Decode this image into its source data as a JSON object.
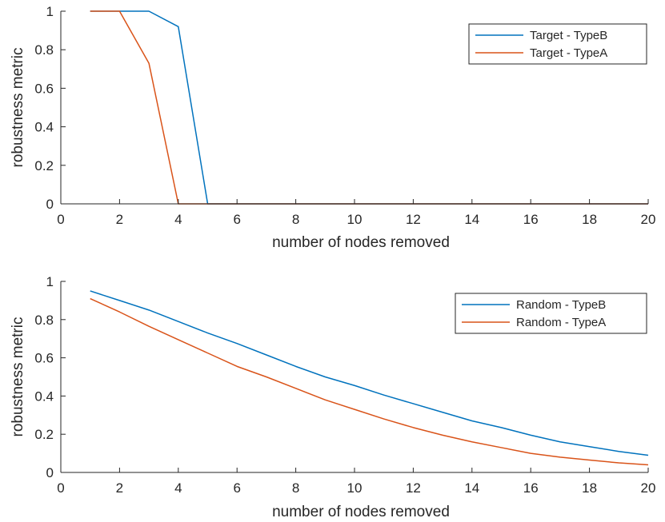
{
  "chart_data": [
    {
      "type": "line",
      "title": "",
      "xlabel": "number of nodes removed",
      "ylabel": "robustness metric",
      "xlim": [
        0,
        20
      ],
      "ylim": [
        0,
        1
      ],
      "xticks": [
        0,
        2,
        4,
        6,
        8,
        10,
        12,
        14,
        16,
        18,
        20
      ],
      "xtick_labels": [
        "0",
        "2",
        "4",
        "6",
        "8",
        "10",
        "12",
        "14",
        "16",
        "18",
        "20"
      ],
      "yticks": [
        0,
        0.2,
        0.4,
        0.6,
        0.8,
        1
      ],
      "ytick_labels": [
        "0",
        "0.2",
        "0.4",
        "0.6",
        "0.8",
        "1"
      ],
      "grid": false,
      "legend_position": "top-right",
      "series": [
        {
          "name": "Target - TypeB",
          "color": "#0072BD",
          "x": [
            1,
            2,
            3,
            4,
            5,
            6,
            7,
            8,
            9,
            10,
            11,
            12,
            13,
            14,
            15,
            16,
            17,
            18,
            19,
            20
          ],
          "y": [
            1,
            1,
            1,
            0.92,
            0,
            0,
            0,
            0,
            0,
            0,
            0,
            0,
            0,
            0,
            0,
            0,
            0,
            0,
            0,
            0
          ]
        },
        {
          "name": "Target - TypeA",
          "color": "#D95319",
          "x": [
            1,
            2,
            3,
            4,
            5,
            6,
            7,
            8,
            9,
            10,
            11,
            12,
            13,
            14,
            15,
            16,
            17,
            18,
            19,
            20
          ],
          "y": [
            1,
            1,
            0.73,
            0,
            0,
            0,
            0,
            0,
            0,
            0,
            0,
            0,
            0,
            0,
            0,
            0,
            0,
            0,
            0,
            0
          ]
        }
      ]
    },
    {
      "type": "line",
      "title": "",
      "xlabel": "number of nodes removed",
      "ylabel": "robustness metric",
      "xlim": [
        0,
        20
      ],
      "ylim": [
        0,
        1
      ],
      "xticks": [
        0,
        2,
        4,
        6,
        8,
        10,
        12,
        14,
        16,
        18,
        20
      ],
      "xtick_labels": [
        "0",
        "2",
        "4",
        "6",
        "8",
        "10",
        "12",
        "14",
        "16",
        "18",
        "20"
      ],
      "yticks": [
        0,
        0.2,
        0.4,
        0.6,
        0.8,
        1
      ],
      "ytick_labels": [
        "0",
        "0.2",
        "0.4",
        "0.6",
        "0.8",
        "1"
      ],
      "grid": false,
      "legend_position": "top-right",
      "series": [
        {
          "name": "Random - TypeB",
          "color": "#0072BD",
          "x": [
            1,
            2,
            3,
            4,
            5,
            6,
            7,
            8,
            9,
            10,
            11,
            12,
            13,
            14,
            15,
            16,
            17,
            18,
            19,
            20
          ],
          "y": [
            0.95,
            0.9,
            0.85,
            0.79,
            0.73,
            0.675,
            0.615,
            0.555,
            0.5,
            0.455,
            0.405,
            0.36,
            0.315,
            0.27,
            0.235,
            0.195,
            0.16,
            0.135,
            0.11,
            0.09
          ]
        },
        {
          "name": "Random - TypeA",
          "color": "#D95319",
          "x": [
            1,
            2,
            3,
            4,
            5,
            6,
            7,
            8,
            9,
            10,
            11,
            12,
            13,
            14,
            15,
            16,
            17,
            18,
            19,
            20
          ],
          "y": [
            0.91,
            0.84,
            0.765,
            0.695,
            0.625,
            0.555,
            0.5,
            0.44,
            0.38,
            0.33,
            0.28,
            0.235,
            0.195,
            0.16,
            0.13,
            0.1,
            0.08,
            0.065,
            0.05,
            0.04
          ]
        }
      ]
    }
  ]
}
